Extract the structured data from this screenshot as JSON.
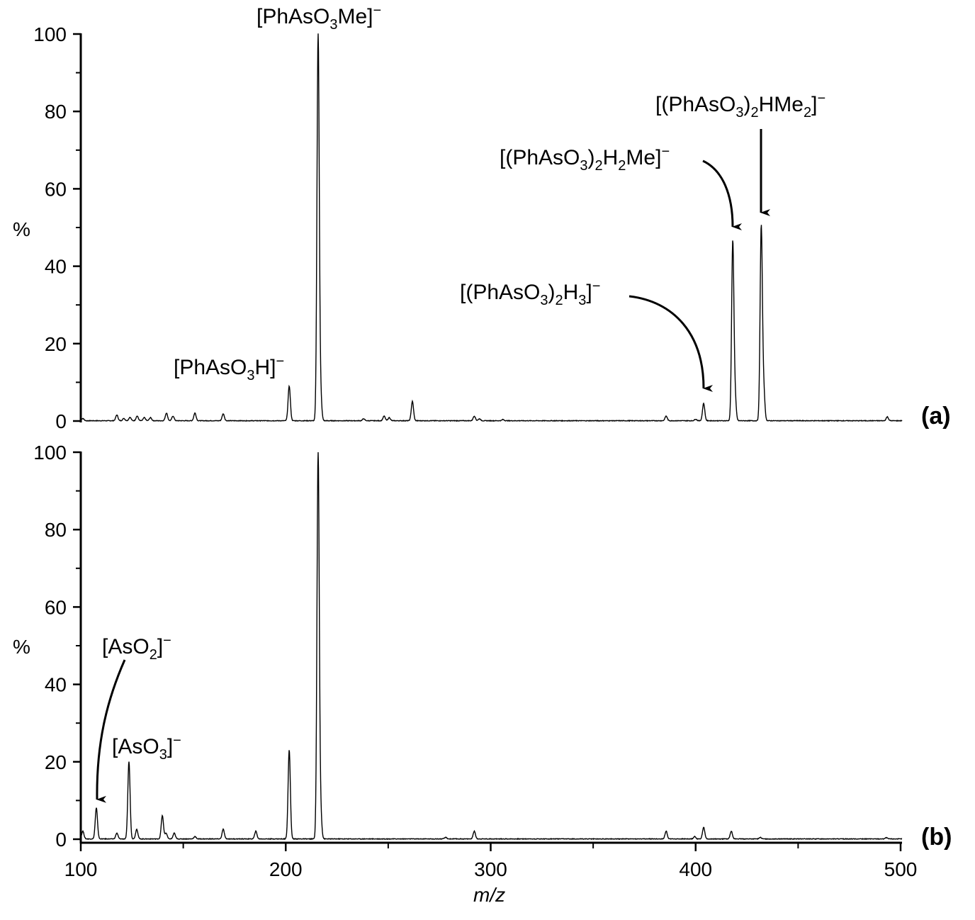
{
  "chart_data": [
    {
      "type": "line",
      "panel_label": "(a)",
      "title": "",
      "xlabel": "m/z",
      "ylabel": "%",
      "xlim": [
        100,
        500
      ],
      "ylim": [
        0,
        100
      ],
      "x_ticks": [
        100,
        200,
        300,
        400,
        500
      ],
      "y_ticks": [
        0,
        20,
        40,
        60,
        80,
        100
      ],
      "grid": false,
      "peaks": [
        {
          "mz": 101,
          "intensity": 0.6
        },
        {
          "mz": 117.6,
          "intensity": 1.5
        },
        {
          "mz": 121,
          "intensity": 0.6
        },
        {
          "mz": 124,
          "intensity": 0.9
        },
        {
          "mz": 127.5,
          "intensity": 1.2
        },
        {
          "mz": 131,
          "intensity": 0.8
        },
        {
          "mz": 134,
          "intensity": 0.8
        },
        {
          "mz": 141.8,
          "intensity": 2.0
        },
        {
          "mz": 145,
          "intensity": 1.2
        },
        {
          "mz": 155.7,
          "intensity": 2.0
        },
        {
          "mz": 169.5,
          "intensity": 1.8
        },
        {
          "mz": 201.7,
          "intensity": 9.0
        },
        {
          "mz": 215.8,
          "intensity": 100
        },
        {
          "mz": 217,
          "intensity": 6.5
        },
        {
          "mz": 238,
          "intensity": 0.5
        },
        {
          "mz": 248,
          "intensity": 1.2
        },
        {
          "mz": 250.5,
          "intensity": 0.8
        },
        {
          "mz": 261.8,
          "intensity": 5.0
        },
        {
          "mz": 292,
          "intensity": 1.2
        },
        {
          "mz": 294.5,
          "intensity": 0.5
        },
        {
          "mz": 306,
          "intensity": 0.3
        },
        {
          "mz": 385.6,
          "intensity": 1.2
        },
        {
          "mz": 400,
          "intensity": 0.4
        },
        {
          "mz": 403.9,
          "intensity": 4.5
        },
        {
          "mz": 418.1,
          "intensity": 46
        },
        {
          "mz": 419.2,
          "intensity": 6
        },
        {
          "mz": 432,
          "intensity": 50
        },
        {
          "mz": 433.2,
          "intensity": 8
        },
        {
          "mz": 493.5,
          "intensity": 1.0
        }
      ],
      "annotations": [
        {
          "label": "[PhAsO3Me]⁻",
          "mz": 215.8,
          "arrow": false
        },
        {
          "label": "[PhAsO3H]⁻",
          "mz": 201.7,
          "arrow": false
        },
        {
          "label": "[(PhAsO3)2H3]⁻",
          "mz": 403.9,
          "arrow": true
        },
        {
          "label": "[(PhAsO3)2H2Me]⁻",
          "mz": 418.1,
          "arrow": true
        },
        {
          "label": "[(PhAsO3)2HMe2]⁻",
          "mz": 432,
          "arrow": true
        }
      ]
    },
    {
      "type": "line",
      "panel_label": "(b)",
      "title": "",
      "xlabel": "m/z",
      "ylabel": "%",
      "xlim": [
        100,
        500
      ],
      "ylim": [
        0,
        100
      ],
      "x_ticks": [
        100,
        200,
        300,
        400,
        500
      ],
      "y_ticks": [
        0,
        20,
        40,
        60,
        80,
        100
      ],
      "grid": false,
      "peaks": [
        {
          "mz": 101,
          "intensity": 2.0
        },
        {
          "mz": 107.6,
          "intensity": 8.0
        },
        {
          "mz": 117.6,
          "intensity": 1.5
        },
        {
          "mz": 123.5,
          "intensity": 20
        },
        {
          "mz": 127.3,
          "intensity": 2.5
        },
        {
          "mz": 139.8,
          "intensity": 6.0
        },
        {
          "mz": 141.6,
          "intensity": 1.5
        },
        {
          "mz": 145.6,
          "intensity": 1.5
        },
        {
          "mz": 155.7,
          "intensity": 0.6
        },
        {
          "mz": 169.5,
          "intensity": 2.5
        },
        {
          "mz": 185.4,
          "intensity": 2.0
        },
        {
          "mz": 201.7,
          "intensity": 23
        },
        {
          "mz": 215.8,
          "intensity": 100
        },
        {
          "mz": 217,
          "intensity": 7
        },
        {
          "mz": 278,
          "intensity": 0.4
        },
        {
          "mz": 292,
          "intensity": 2.0
        },
        {
          "mz": 385.6,
          "intensity": 2.0
        },
        {
          "mz": 399.5,
          "intensity": 0.6
        },
        {
          "mz": 403.9,
          "intensity": 3.0
        },
        {
          "mz": 417.4,
          "intensity": 2.0
        },
        {
          "mz": 431.5,
          "intensity": 0.4
        },
        {
          "mz": 493,
          "intensity": 0.3
        }
      ],
      "annotations": [
        {
          "label": "[AsO2]⁻",
          "mz": 107.6,
          "arrow": true
        },
        {
          "label": "[AsO3]⁻",
          "mz": 123.5,
          "arrow": false
        }
      ]
    }
  ],
  "axes": {
    "y_label": "%",
    "x_label": "m/z",
    "y_tick_labels": [
      "0",
      "20",
      "40",
      "60",
      "80",
      "100"
    ],
    "x_tick_labels": [
      "100",
      "200",
      "300",
      "400",
      "500"
    ]
  },
  "panels": {
    "a": {
      "tag": "(a)"
    },
    "b": {
      "tag": "(b)"
    }
  },
  "labels": {
    "phaso3me": {
      "main": "[PhAsO",
      "sub": "3",
      "tail": "Me]",
      "sup": "−"
    },
    "phaso3h": {
      "main": "[PhAsO",
      "sub": "3",
      "tail": "H]",
      "sup": "−"
    },
    "dimer_h3": {
      "p1": "[(PhAsO",
      "s1": "3",
      "p2": ")",
      "s2": "2",
      "p3": "H",
      "s3": "3",
      "p4": "]",
      "sup": "−"
    },
    "dimer_h2me": {
      "p1": "[(PhAsO",
      "s1": "3",
      "p2": ")",
      "s2": "2",
      "p3": "H",
      "s3": "2",
      "p4": "Me]",
      "sup": "−"
    },
    "dimer_hme2": {
      "p1": "[(PhAsO",
      "s1": "3",
      "p2": ")",
      "s2": "2",
      "p3": "HMe",
      "s3": "2",
      "p4": "]",
      "sup": "−"
    },
    "aso2": {
      "main": "[AsO",
      "sub": "2",
      "tail": "]",
      "sup": "−"
    },
    "aso3": {
      "main": "[AsO",
      "sub": "3",
      "tail": "]",
      "sup": "−"
    }
  },
  "colors": {
    "line": "#000000",
    "background": "#ffffff"
  }
}
